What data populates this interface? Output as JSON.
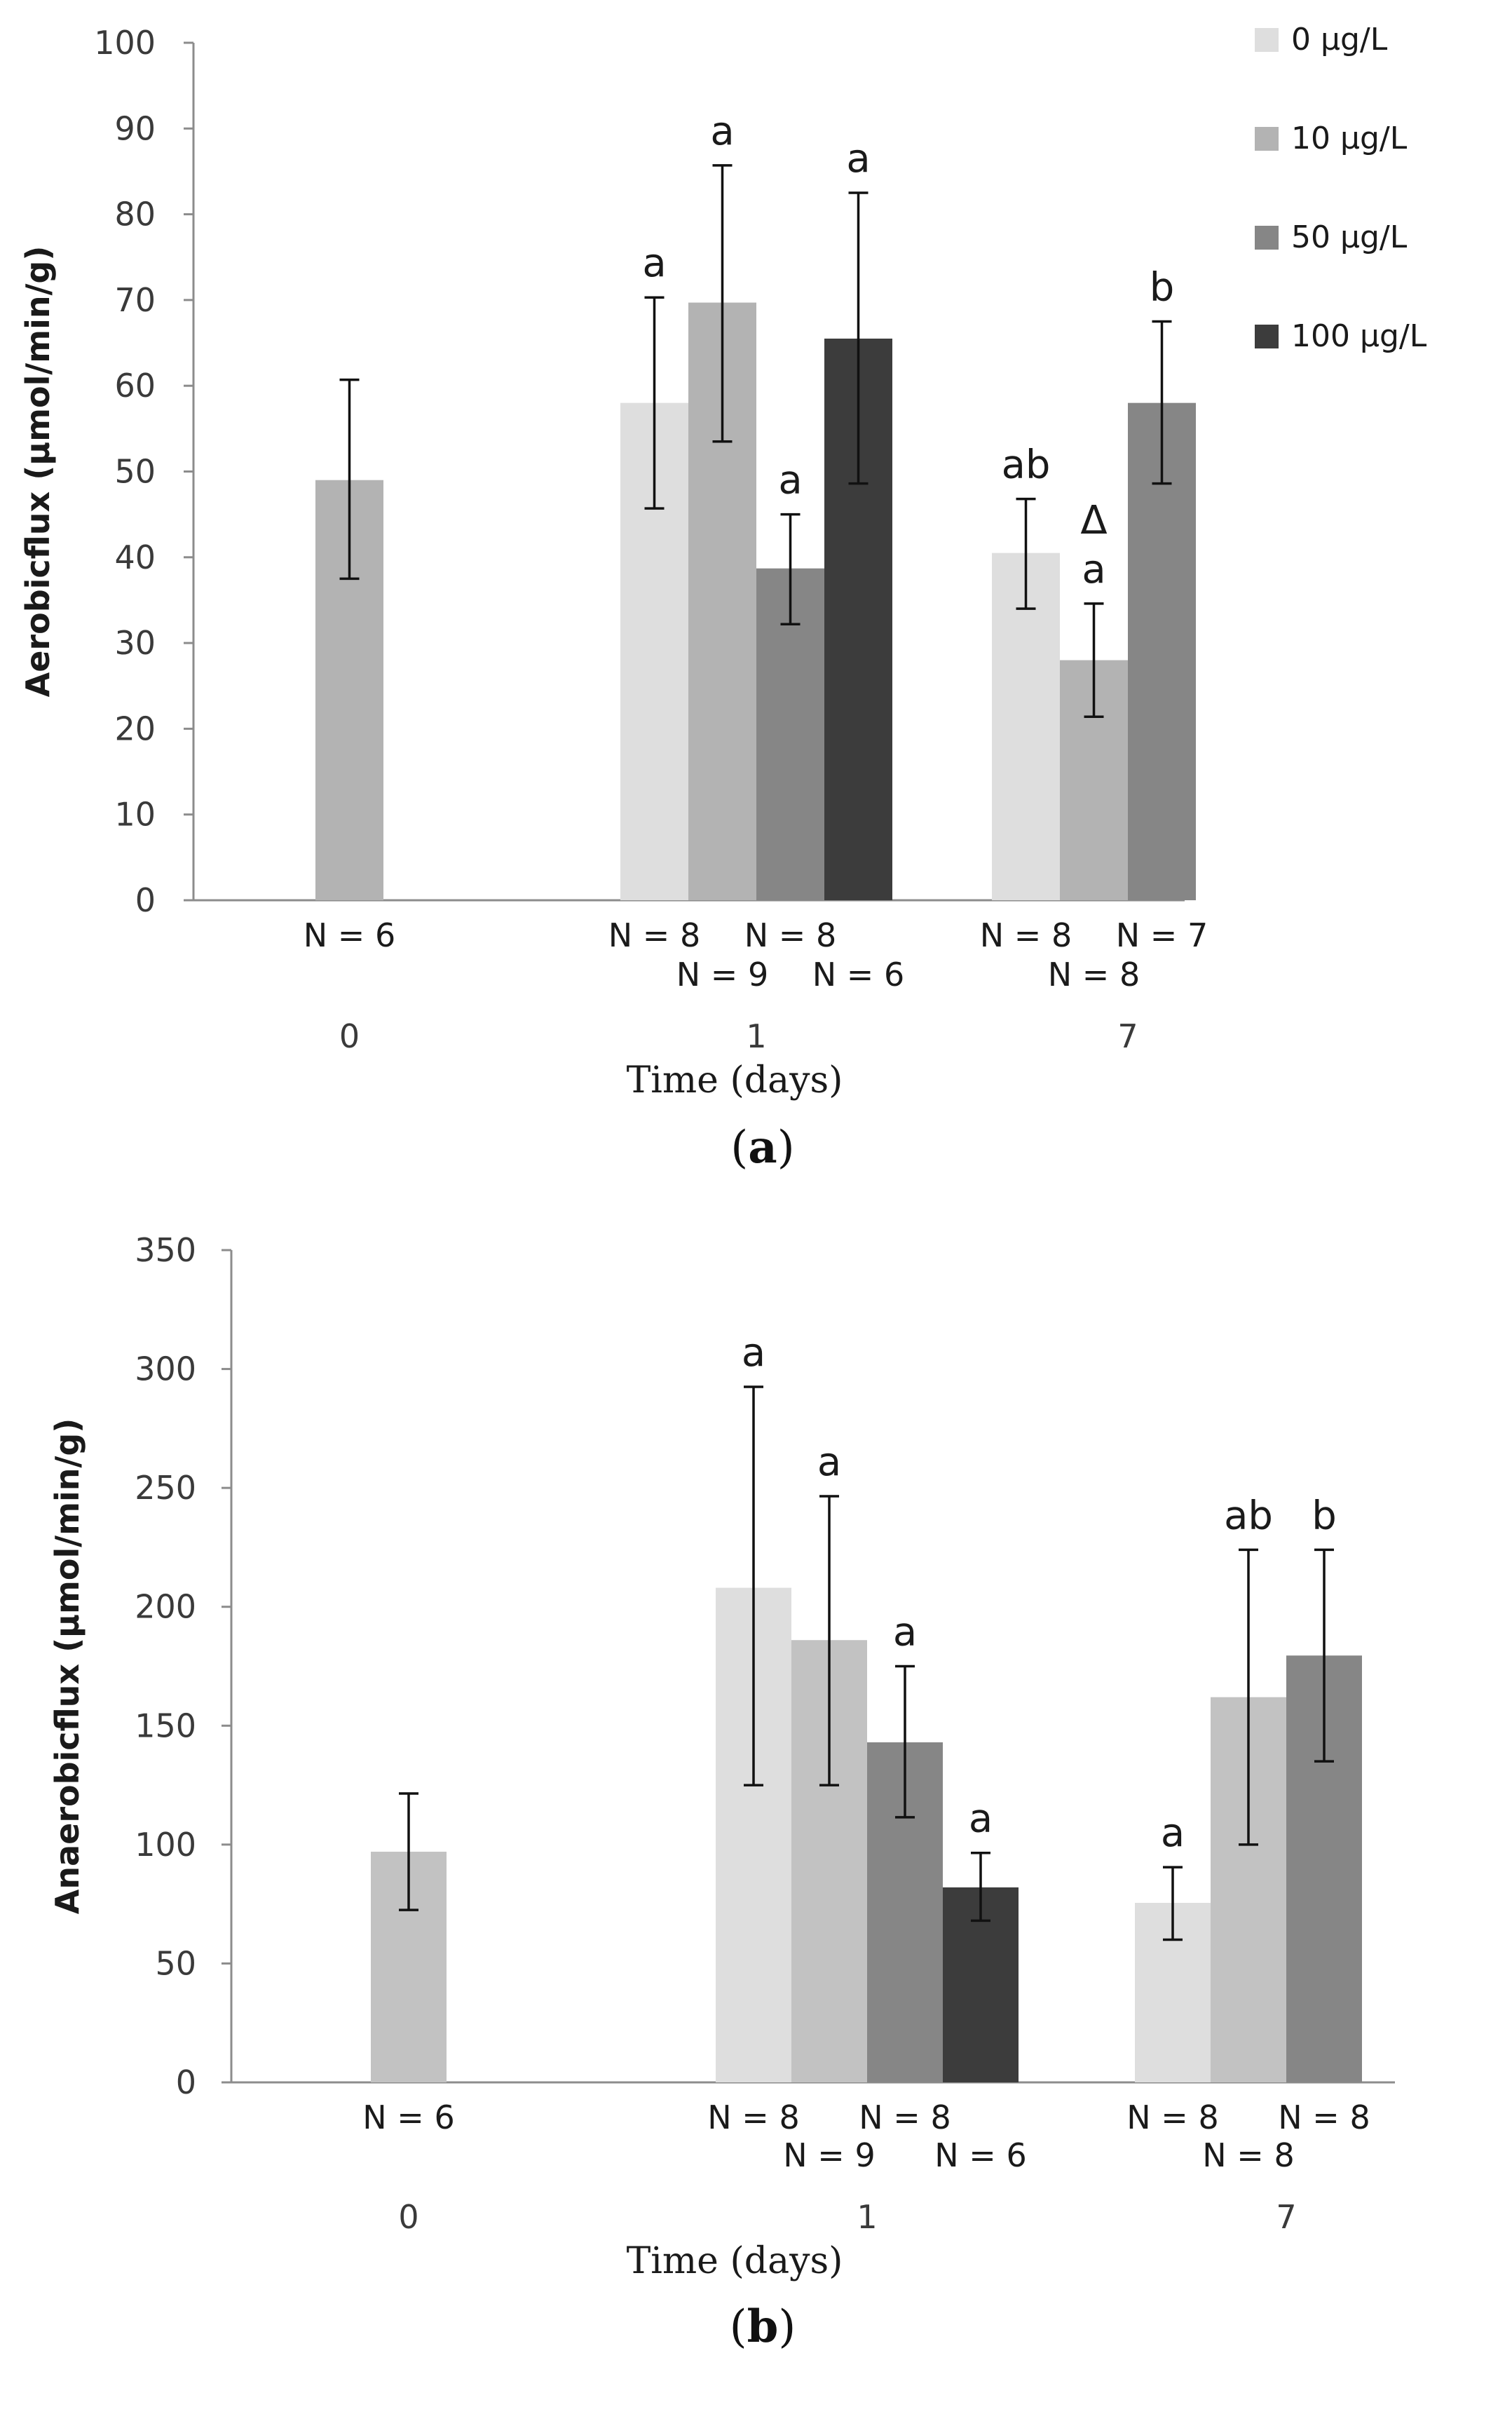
{
  "legend": [
    {
      "label": "0 µg/L",
      "color": "#dedede"
    },
    {
      "label": "10  µg/L",
      "color": "#b3b3b3"
    },
    {
      "label": "50 µg/L",
      "color": "#868686"
    },
    {
      "label": "100 µg/L",
      "color": "#3c3c3c"
    }
  ],
  "chart_data": [
    {
      "type": "bar",
      "panel": "a",
      "caption": {
        "open": "(",
        "letter": "a",
        "close": ")"
      },
      "ylabel": "Aerobicflux (µmol/min/g)",
      "xlabel": "Time (days)",
      "ylim": [
        0,
        100
      ],
      "yticks": [
        0,
        10,
        20,
        30,
        40,
        50,
        60,
        70,
        80,
        90,
        100
      ],
      "groups": [
        {
          "label": "0",
          "bars": [
            {
              "color": "#b3b3b3",
              "value": 49,
              "err": [
                37.5,
                60.7
              ],
              "n": "N = 6",
              "nrow": 0,
              "sig": []
            }
          ]
        },
        {
          "label": "1",
          "bars": [
            {
              "color": "#dedede",
              "value": 58,
              "err": [
                45.7,
                70.3
              ],
              "n": "N = 8",
              "nrow": 0,
              "sig": [
                "a"
              ]
            },
            {
              "color": "#b3b3b3",
              "value": 69.7,
              "err": [
                53.5,
                85.7
              ],
              "n": "N = 9",
              "nrow": 1,
              "sig": [
                "a"
              ]
            },
            {
              "color": "#868686",
              "value": 38.7,
              "err": [
                32.2,
                45
              ],
              "n": "N = 8",
              "nrow": 0,
              "sig": [
                "a"
              ]
            },
            {
              "color": "#3c3c3c",
              "value": 65.5,
              "err": [
                48.6,
                82.5
              ],
              "n": "N = 6",
              "nrow": 1,
              "sig": [
                "a"
              ]
            }
          ]
        },
        {
          "label": "7",
          "bars": [
            {
              "color": "#dedede",
              "value": 40.5,
              "err": [
                34,
                46.8
              ],
              "n": "N = 8",
              "nrow": 0,
              "sig": [
                "ab"
              ]
            },
            {
              "color": "#b3b3b3",
              "value": 28,
              "err": [
                21.4,
                34.6
              ],
              "n": "N = 8",
              "nrow": 1,
              "sig": [
                "a",
                "Δ"
              ]
            },
            {
              "color": "#868686",
              "value": 58,
              "err": [
                48.6,
                67.5
              ],
              "n": "N = 7",
              "nrow": 0,
              "sig": [
                "b"
              ]
            }
          ]
        }
      ]
    },
    {
      "type": "bar",
      "panel": "b",
      "caption": {
        "open": "(",
        "letter": "b",
        "close": ")"
      },
      "ylabel": "Anaerobicflux (µmol/min/g)",
      "xlabel": "Time (days)",
      "ylim": [
        0,
        350
      ],
      "yticks": [
        0,
        50,
        100,
        150,
        200,
        250,
        300,
        350
      ],
      "groups": [
        {
          "label": "0",
          "bars": [
            {
              "color": "#c2c2c2",
              "value": 97,
              "err": [
                72.5,
                121.5
              ],
              "n": "N = 6",
              "nrow": 0,
              "sig": []
            }
          ]
        },
        {
          "label": "1",
          "bars": [
            {
              "color": "#dedede",
              "value": 208,
              "err": [
                125,
                292.5
              ],
              "n": "N = 8",
              "nrow": 0,
              "sig": [
                "a"
              ]
            },
            {
              "color": "#c2c2c2",
              "value": 186,
              "err": [
                125,
                246.5
              ],
              "n": "N = 9",
              "nrow": 1,
              "sig": [
                "a"
              ]
            },
            {
              "color": "#868686",
              "value": 143,
              "err": [
                111.5,
                175
              ],
              "n": "N = 8",
              "nrow": 0,
              "sig": [
                "a"
              ]
            },
            {
              "color": "#3c3c3c",
              "value": 82,
              "err": [
                68,
                96.5
              ],
              "n": "N = 6",
              "nrow": 1,
              "sig": [
                "a"
              ]
            }
          ]
        },
        {
          "label": "7",
          "bars": [
            {
              "color": "#dedede",
              "value": 75.5,
              "err": [
                60,
                90.5
              ],
              "n": "N = 8",
              "nrow": 0,
              "sig": [
                "a"
              ]
            },
            {
              "color": "#c2c2c2",
              "value": 162,
              "err": [
                100,
                224
              ],
              "n": "N = 8",
              "nrow": 1,
              "sig": [
                "ab"
              ]
            },
            {
              "color": "#868686",
              "value": 179.5,
              "err": [
                135,
                224
              ],
              "n": "N = 8",
              "nrow": 0,
              "sig": [
                "b"
              ]
            }
          ]
        }
      ]
    }
  ]
}
